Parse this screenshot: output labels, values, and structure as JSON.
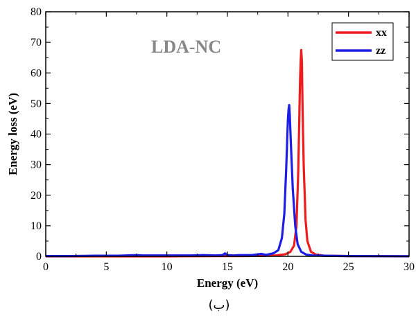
{
  "chart_data": {
    "type": "line",
    "annotation": "LDA-NC",
    "xlabel": "Energy (eV)",
    "ylabel": "Energy loss (eV)",
    "xlim": [
      0,
      30
    ],
    "ylim": [
      0,
      80
    ],
    "xticks": [
      0,
      5,
      10,
      15,
      20,
      25,
      30
    ],
    "yticks": [
      0,
      10,
      20,
      30,
      40,
      50,
      60,
      70,
      80
    ],
    "grid": false,
    "legend_position": "top-right",
    "series": [
      {
        "name": "xx",
        "color": "#ee1c1c",
        "x": [
          0,
          5,
          10,
          14,
          16,
          18,
          19,
          19.8,
          20.2,
          20.5,
          20.7,
          20.85,
          20.95,
          21.0,
          21.05,
          21.1,
          21.15,
          21.2,
          21.3,
          21.45,
          21.6,
          21.9,
          22.3,
          23,
          25,
          30
        ],
        "y": [
          0,
          0,
          0,
          0.1,
          0.1,
          0.15,
          0.3,
          0.7,
          1.5,
          3.5,
          10,
          28,
          48,
          58,
          64,
          67.5,
          64,
          50,
          30,
          12,
          5,
          1.5,
          0.6,
          0.2,
          0.1,
          0
        ]
      },
      {
        "name": "zz",
        "color": "#1d1de8",
        "x": [
          0,
          2,
          4,
          6,
          7.5,
          8,
          10,
          12,
          13,
          14,
          14.6,
          14.8,
          15.0,
          15.5,
          16,
          17,
          17.8,
          18.2,
          18.8,
          19.2,
          19.5,
          19.7,
          19.85,
          19.95,
          20.0,
          20.05,
          20.1,
          20.15,
          20.25,
          20.4,
          20.6,
          20.8,
          21.1,
          21.5,
          22,
          23,
          25,
          30
        ],
        "y": [
          0.1,
          0.1,
          0.2,
          0.2,
          0.4,
          0.3,
          0.3,
          0.3,
          0.4,
          0.3,
          0.4,
          1.0,
          0.4,
          0.3,
          0.4,
          0.4,
          0.8,
          0.5,
          1.0,
          2.0,
          6,
          14,
          28,
          40,
          45,
          48,
          49.5,
          46,
          36,
          22,
          10,
          4,
          1.5,
          0.6,
          0.3,
          0.2,
          0.1,
          0.05
        ]
      }
    ]
  },
  "caption": "(ب)"
}
